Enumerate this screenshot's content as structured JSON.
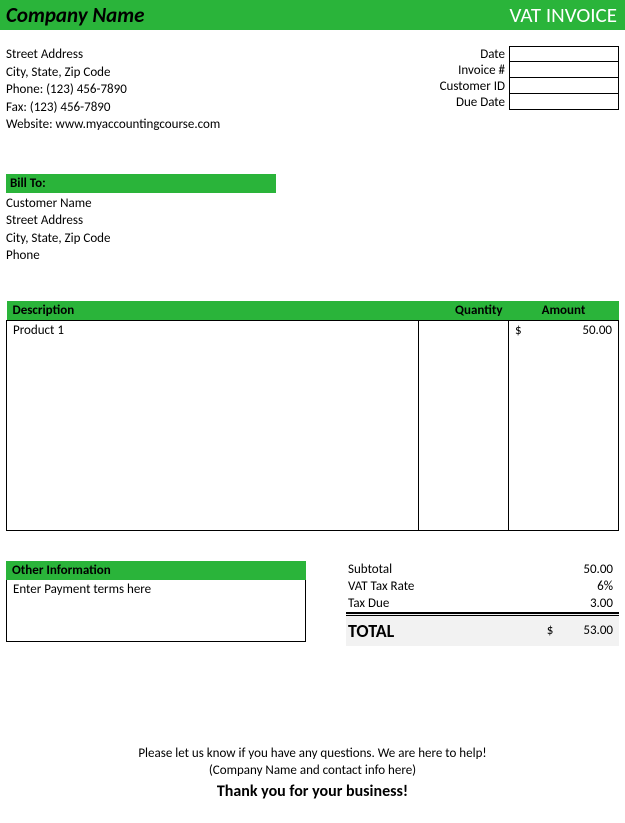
{
  "colors": {
    "accent": "#2ab43a",
    "text": "#000000",
    "white": "#ffffff",
    "total_bg": "#f2f2f2"
  },
  "header": {
    "company_name": "Company Name",
    "invoice_title": "VAT INVOICE"
  },
  "sender": {
    "street": "Street Address",
    "csz": "City, State, Zip Code",
    "phone": "Phone: (123) 456-7890",
    "fax": "Fax: (123) 456-7890",
    "website": "Website: www.myaccountingcourse.com"
  },
  "meta_labels": {
    "date": "Date",
    "invoice_no": "Invoice #",
    "customer_id": "Customer ID",
    "due_date": "Due Date"
  },
  "billto": {
    "header": "Bill To:",
    "name": "Customer Name",
    "street": "Street Address",
    "csz": "City, State, Zip Code",
    "phone": "Phone"
  },
  "items_table": {
    "columns": {
      "description": "Description",
      "quantity": "Quantity",
      "amount": "Amount"
    },
    "rows": [
      {
        "description": "Product 1",
        "quantity": "",
        "currency": "$",
        "amount": "50.00"
      }
    ]
  },
  "other_info": {
    "header": "Other Information",
    "body": "Enter Payment terms here"
  },
  "totals": {
    "subtotal_label": "Subtotal",
    "subtotal_value": "50.00",
    "vat_label": "VAT Tax Rate",
    "vat_value": "6%",
    "taxdue_label": "Tax Due",
    "taxdue_value": "3.00",
    "total_label": "TOTAL",
    "total_currency": "$",
    "total_value": "53.00"
  },
  "footer": {
    "line1": "Please let us know if you have any questions. We are here to help!",
    "line2": "(Company Name and contact info here)",
    "thanks": "Thank you for your business!"
  }
}
